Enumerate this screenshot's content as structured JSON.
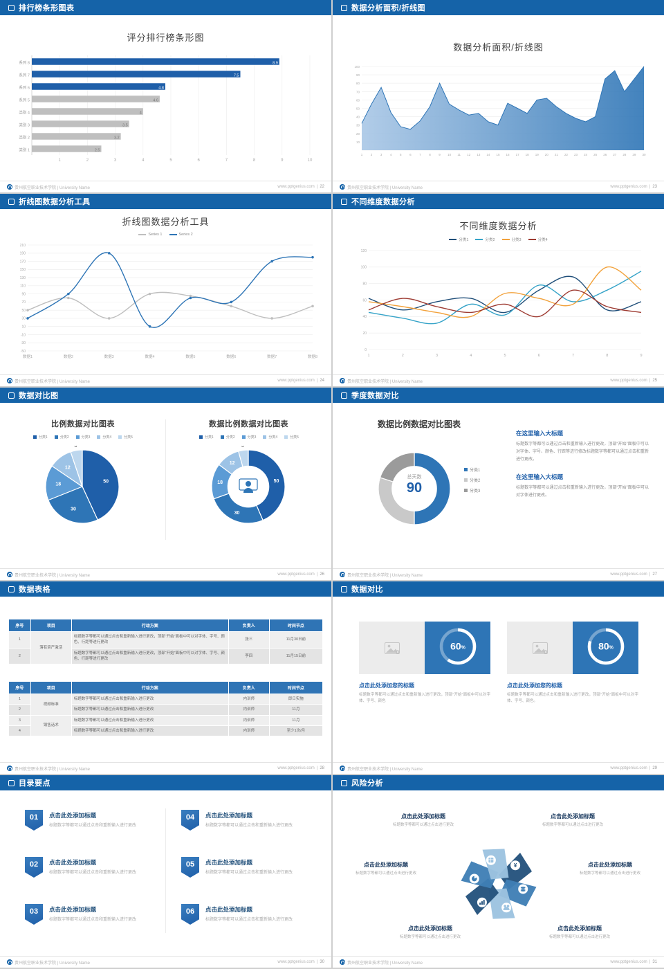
{
  "footer": {
    "org": "贵州航空职业技术学院 | University Name",
    "site": "www.pptgenius.com"
  },
  "slides": {
    "s22": {
      "header": "排行榜条形图表",
      "page": "22",
      "title": "评分排行榜条形图"
    },
    "s23": {
      "header": "数据分析面积/折线图",
      "page": "23",
      "title": "数据分析面积/折线图"
    },
    "s24": {
      "header": "折线图数据分析工具",
      "page": "24",
      "title": "折线图数据分析工具"
    },
    "s25": {
      "header": "不同维度数据分析",
      "page": "25",
      "title": "不同维度数据分析"
    },
    "s26": {
      "header": "数据对比图",
      "page": "26",
      "title_left": "比例数据对比图表",
      "title_right": "数据比例数据对比图表"
    },
    "s27": {
      "header": "季度数据对比",
      "page": "27",
      "title": "数据比例数据对比图表",
      "donut_center_label": "总天数",
      "donut_center_value": "90",
      "blocks": [
        {
          "title": "在这里输入大标题",
          "body": "标题数字等都可以通过点击和重新输入进行更改，顶部“开始”面板中可以对字体、字号、颜色、行距等进行修改标题数字等都可以通过点击和重新进行更改。"
        },
        {
          "title": "在这里输入大标题",
          "body": "标题数字等都可以通过点击和重新输入进行更改，顶部“开始”面板中可以对字体进行更改。"
        }
      ]
    },
    "s28": {
      "header": "数据表格",
      "page": "28",
      "table1": {
        "headers": [
          "序号",
          "项目",
          "行动方案",
          "负责人",
          "时间节点"
        ],
        "rows": [
          [
            "1",
            "落有资产激活",
            "标题数字等都可以通过点击和重新输入进行更改，顶部“开始”面板中可以对字体、字号、颜色、行距等进行更改",
            "张三",
            "11月30日前"
          ],
          [
            "2",
            "",
            "标题数字等都可以通过点击和重新输入进行更改，顶部“开始”面板中可以对字体、字号、颜色、行距等进行更改",
            "李四",
            "11月15日前"
          ]
        ]
      },
      "table2": {
        "headers": [
          "序号",
          "项目",
          "行动方案",
          "负责人",
          "时间节点"
        ],
        "rows": [
          [
            "1",
            "视频标准",
            "标题数字等都可以通过点击和重新输入进行更改",
            "内训师",
            "即日实施"
          ],
          [
            "2",
            "",
            "标题数字等都可以通过点击和重新输入进行更改",
            "内训师",
            "11月"
          ],
          [
            "3",
            "销售话术",
            "标题数字等都可以通过点击和重新输入进行更改",
            "内训师",
            "11月"
          ],
          [
            "4",
            "",
            "标题数字等都可以通过点击和重新输入进行更改",
            "内训师",
            "至少1次/月"
          ]
        ]
      }
    },
    "s29": {
      "header": "数据对比",
      "page": "29",
      "cards": [
        {
          "pct": 60,
          "title": "点击此处添加您的标题",
          "body": "标题数字等都可以通过点击和重新输入进行更改，顶部“开始”面板中可以对字体、字号、颜色"
        },
        {
          "pct": 80,
          "title": "点击此处添加您的标题",
          "body": "标题数字等都可以通过点击和重新输入进行更改，顶部“开始”面板中可以对字体、字号、颜色。"
        }
      ]
    },
    "s30": {
      "header": "目录要点",
      "page": "30",
      "items": [
        {
          "num": "01",
          "title": "点击此处添加标题",
          "sub": "标题数字等都可以通过点击和重新输入进行更改"
        },
        {
          "num": "02",
          "title": "点击此处添加标题",
          "sub": "标题数字等都可以通过点击和重新输入进行更改"
        },
        {
          "num": "03",
          "title": "点击此处添加标题",
          "sub": "标题数字等都可以通过点击和重新输入进行更改"
        },
        {
          "num": "04",
          "title": "点击此处添加标题",
          "sub": "标题数字等都可以通过点击和重新输入进行更改"
        },
        {
          "num": "05",
          "title": "点击此处添加标题",
          "sub": "标题数字等都可以通过点击和重新输入进行更改"
        },
        {
          "num": "06",
          "title": "点击此处添加标题",
          "sub": "标题数字等都可以通过点击和重新输入进行更改"
        }
      ]
    },
    "s31": {
      "header": "风险分析",
      "page": "31",
      "wheel": {
        "colors": [
          "#24527D",
          "#3F7FB5",
          "#9CC3E0"
        ],
        "icons": [
          "money",
          "coins",
          "users",
          "chart",
          "pie",
          "grid"
        ]
      },
      "blocks": [
        {
          "title": "点击此处添加标题",
          "sub": "标题数字等都可以通过点击进行更改"
        },
        {
          "title": "点击此处添加标题",
          "sub": "标题数字等都可以通过点击进行更改"
        },
        {
          "title": "点击此处添加标题",
          "sub": "标题数字等都可以通过点击进行更改"
        },
        {
          "title": "点击此处添加标题",
          "sub": "标题数字等都可以通过点击进行更改"
        },
        {
          "title": "点击此处添加标题",
          "sub": "标题数字等都可以通过点击进行更改"
        },
        {
          "title": "点击此处添加标题",
          "sub": "标题数字等都可以通过点击进行更改"
        }
      ]
    }
  },
  "chart_data": [
    {
      "slide": "22",
      "type": "bar",
      "orientation": "horizontal",
      "title": "评分排行榜条形图",
      "categories": [
        "系列 8",
        "系列 7",
        "系列 6",
        "系列 5",
        "类别 4",
        "类别 3",
        "类别 2",
        "类别 1"
      ],
      "values": [
        8.9,
        7.5,
        4.8,
        4.6,
        4,
        3.5,
        3.2,
        2.5
      ],
      "colors": [
        "#1F5FA9",
        "#1F5FA9",
        "#1F5FA9",
        "#BFBFBF",
        "#BFBFBF",
        "#BFBFBF",
        "#BFBFBF",
        "#BFBFBF"
      ],
      "xlim": [
        0,
        10
      ],
      "xticks": [
        1,
        2,
        3,
        4,
        5,
        6,
        7,
        8,
        9,
        10
      ]
    },
    {
      "slide": "23",
      "type": "area",
      "title": "数据分析面积/折线图",
      "x": [
        1,
        2,
        3,
        4,
        5,
        6,
        7,
        8,
        9,
        10,
        11,
        12,
        13,
        14,
        15,
        16,
        17,
        18,
        19,
        20,
        21,
        22,
        23,
        24,
        25,
        26,
        27,
        28,
        29,
        30
      ],
      "values": [
        32,
        55,
        75,
        45,
        28,
        25,
        35,
        52,
        80,
        55,
        48,
        42,
        44,
        34,
        30,
        56,
        50,
        44,
        60,
        62,
        52,
        44,
        38,
        34,
        40,
        85,
        95,
        70,
        85,
        100
      ],
      "ylim": [
        0,
        100
      ],
      "yticks_step": 10,
      "color": "#2E75B6"
    },
    {
      "slide": "24",
      "type": "line",
      "title": "折线图数据分析工具",
      "categories": [
        "数据1",
        "数据2",
        "数据3",
        "数据4",
        "数据5",
        "数据6",
        "数据7",
        "数据8"
      ],
      "series": [
        {
          "name": "Series 1",
          "color": "#BFBFBF",
          "values": [
            50,
            80,
            30,
            90,
            85,
            60,
            30,
            60
          ]
        },
        {
          "name": "Series 2",
          "color": "#2E75B6",
          "values": [
            30,
            90,
            190,
            10,
            80,
            70,
            170,
            180
          ]
        }
      ],
      "ylim": [
        -50,
        210
      ],
      "ystep": 20,
      "markers": true
    },
    {
      "slide": "25",
      "type": "line",
      "title": "不同维度数据分析",
      "categories": [
        1,
        2,
        3,
        4,
        5,
        6,
        7,
        8,
        9
      ],
      "series": [
        {
          "name": "分类1",
          "color": "#1F4E79",
          "values": [
            62,
            48,
            58,
            62,
            45,
            72,
            88,
            48,
            58
          ]
        },
        {
          "name": "分类2",
          "color": "#35A3C8",
          "values": [
            45,
            38,
            32,
            55,
            42,
            78,
            58,
            72,
            95
          ]
        },
        {
          "name": "分类3",
          "color": "#F2A23C",
          "values": [
            58,
            52,
            45,
            40,
            68,
            62,
            55,
            100,
            72
          ]
        },
        {
          "name": "分类4",
          "color": "#9E3B32",
          "values": [
            48,
            62,
            52,
            45,
            55,
            40,
            72,
            52,
            45
          ]
        }
      ],
      "ylim": [
        0,
        120
      ],
      "ystep": 20,
      "markers": false
    },
    {
      "slide": "26",
      "type": "pie",
      "title": "比例数据对比图表",
      "labels": [
        "分类1",
        "分类2",
        "分类3",
        "分类4",
        "分类5"
      ],
      "values": [
        50,
        30,
        18,
        12,
        6
      ],
      "colors": [
        "#1F5FA9",
        "#2E75B6",
        "#5B9BD5",
        "#9DC3E6",
        "#BDD7EE"
      ]
    },
    {
      "slide": "26",
      "type": "donut",
      "title": "数据比例数据对比图表",
      "labels": [
        "分类1",
        "分类2",
        "分类3",
        "分类4",
        "分类5"
      ],
      "values": [
        50,
        30,
        18,
        12,
        5
      ],
      "colors": [
        "#1F5FA9",
        "#2E75B6",
        "#5B9BD5",
        "#9DC3E6",
        "#BDD7EE"
      ],
      "inner": 0.56,
      "icon": "presenter"
    },
    {
      "slide": "27",
      "type": "donut",
      "title": "数据比例数据对比图表",
      "labels": [
        "分类1",
        "分类2",
        "分类3"
      ],
      "values": [
        50,
        30,
        20
      ],
      "colors": [
        "#2E75B6",
        "#C9C9C9",
        "#9B9B9B"
      ],
      "inner": 0.62,
      "show_labels": false,
      "center": {
        "label": "总天数",
        "value": "90"
      }
    }
  ]
}
